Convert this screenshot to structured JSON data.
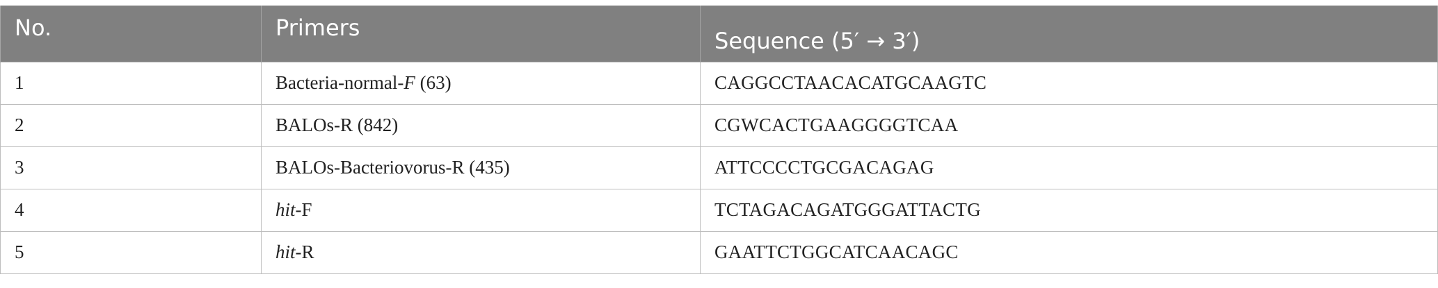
{
  "table": {
    "headers": [
      "No.",
      "Primers",
      "Sequence (5′ → 3′)"
    ],
    "rows": [
      {
        "no": "1",
        "primer_pre": "Bacteria-normal-",
        "primer_it": "F",
        "primer_post": " (63)",
        "primer_it_first": false,
        "sequence": "CAGGCCTAACACATGCAAGTC"
      },
      {
        "no": "2",
        "primer_pre": "BALOs-R (842)",
        "primer_it": "",
        "primer_post": "",
        "primer_it_first": false,
        "sequence": "CGWCACTGAAGGGGTCAA"
      },
      {
        "no": "3",
        "primer_pre": "BALOs-Bacteriovorus-R (435)",
        "primer_it": "",
        "primer_post": "",
        "primer_it_first": false,
        "sequence": "ATTCCCCTGCGACAGAG"
      },
      {
        "no": "4",
        "primer_pre": "",
        "primer_it": "hit",
        "primer_post": "-F",
        "primer_it_first": true,
        "sequence": "TCTAGACAGATGGGATTACTG"
      },
      {
        "no": "5",
        "primer_pre": "",
        "primer_it": "hit",
        "primer_post": "-R",
        "primer_it_first": true,
        "sequence": "GAATTCTGGCATCAACAGC"
      }
    ]
  }
}
